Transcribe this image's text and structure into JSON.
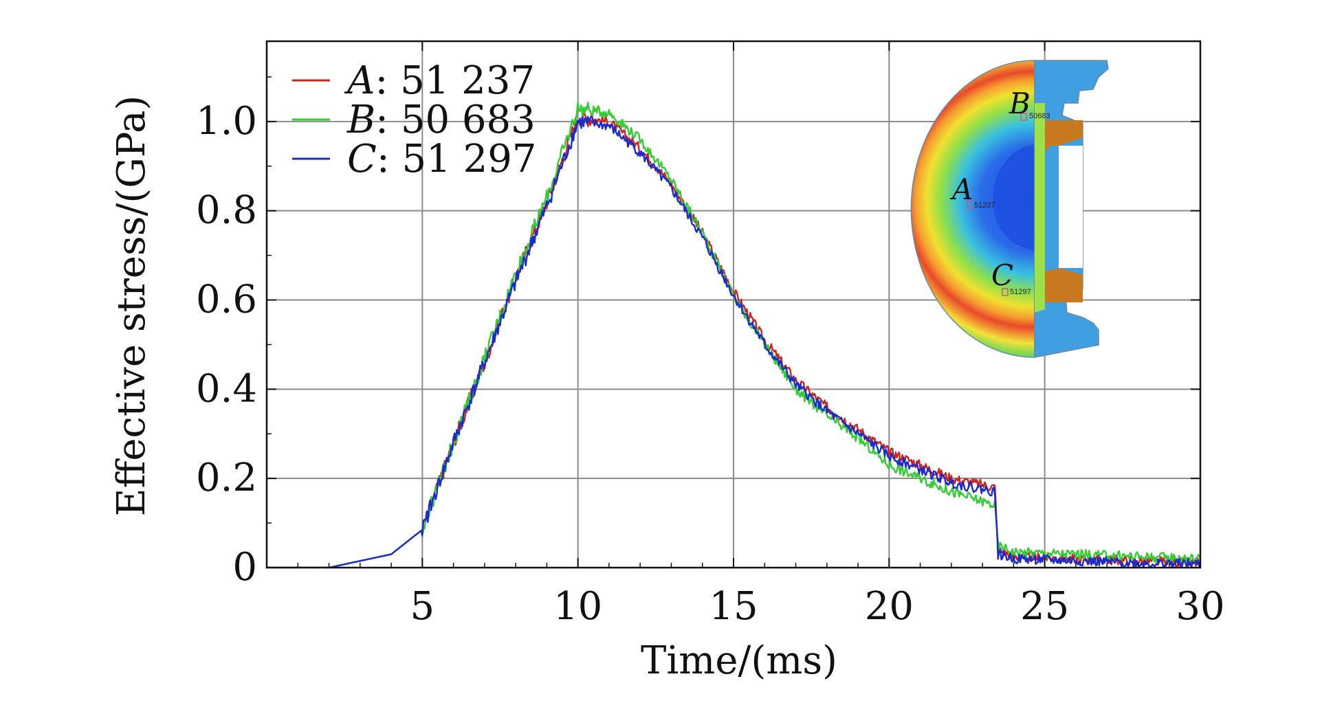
{
  "chart_data": {
    "type": "line",
    "title": "",
    "xlabel": "Time/(ms)",
    "ylabel": "Effective stress/(GPa)",
    "xlim": [
      0,
      30
    ],
    "ylim": [
      0,
      1.18
    ],
    "xticks": [
      5,
      10,
      15,
      20,
      25,
      30
    ],
    "xtick_labels": [
      "5",
      "10",
      "15",
      "20",
      "25",
      "30"
    ],
    "yticks": [
      0,
      0.2,
      0.4,
      0.6,
      0.8,
      1.0
    ],
    "ytick_labels": [
      "0",
      "0.2",
      "0.4",
      "0.6",
      "0.8",
      "1.0"
    ],
    "grid": true,
    "legend_position": "top-left",
    "x": [
      0,
      2,
      3,
      4,
      5,
      6,
      7,
      8,
      9,
      10,
      11,
      12,
      13,
      14,
      15,
      16,
      17,
      18,
      19,
      20,
      21,
      22,
      23.4,
      23.5,
      24,
      26,
      28,
      30
    ],
    "series": [
      {
        "name": "A",
        "legend_letter": "A",
        "legend_value": ": 51 237",
        "color": "#cc2222",
        "values": [
          0,
          0,
          0.015,
          0.03,
          0.085,
          0.28,
          0.46,
          0.65,
          0.82,
          1.01,
          1.0,
          0.94,
          0.86,
          0.75,
          0.62,
          0.51,
          0.42,
          0.36,
          0.31,
          0.26,
          0.23,
          0.2,
          0.18,
          0.04,
          0.025,
          0.02,
          0.015,
          0.01
        ]
      },
      {
        "name": "B",
        "legend_letter": "B",
        "legend_value": ": 50 683",
        "color": "#33cc33",
        "values": [
          0,
          0,
          0.015,
          0.03,
          0.085,
          0.28,
          0.47,
          0.66,
          0.83,
          1.03,
          1.02,
          0.96,
          0.87,
          0.75,
          0.61,
          0.5,
          0.4,
          0.34,
          0.29,
          0.23,
          0.2,
          0.17,
          0.14,
          0.05,
          0.035,
          0.03,
          0.025,
          0.02
        ]
      },
      {
        "name": "C",
        "legend_letter": "C",
        "legend_value": ": 51 297",
        "color": "#1a2bcc",
        "values": [
          0,
          0,
          0.015,
          0.03,
          0.085,
          0.28,
          0.46,
          0.64,
          0.81,
          1.0,
          0.99,
          0.93,
          0.85,
          0.74,
          0.61,
          0.5,
          0.41,
          0.35,
          0.3,
          0.25,
          0.22,
          0.19,
          0.17,
          0.03,
          0.02,
          0.015,
          0.01,
          0.008
        ]
      }
    ],
    "inset": {
      "description_labels": [
        "A",
        "B",
        "C"
      ],
      "node_ids": [
        "51237",
        "50683",
        "51297"
      ]
    }
  }
}
